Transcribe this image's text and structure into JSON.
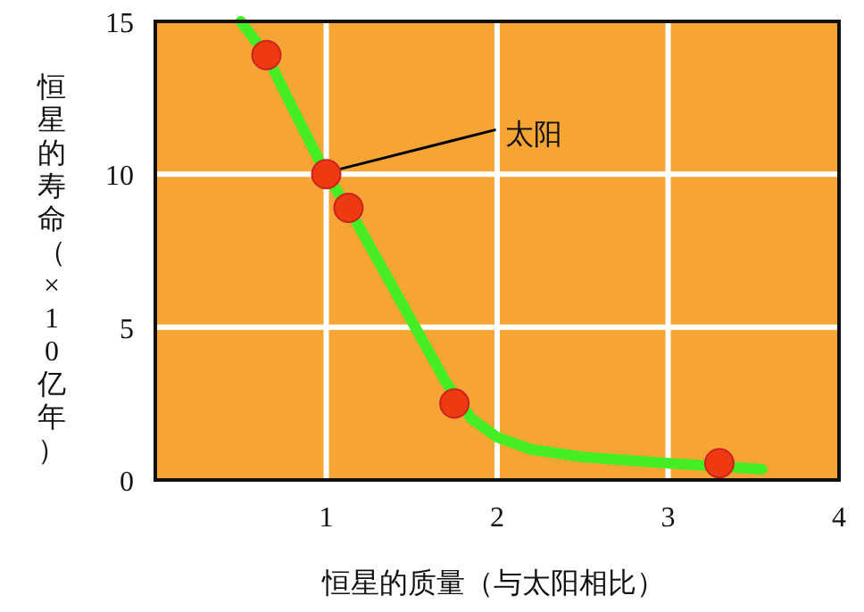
{
  "chart_data": {
    "type": "scatter",
    "xlabel": "恒星的质量（与太阳相比）",
    "ylabel": "恒星的寿命（×10亿年）",
    "xlim": [
      0,
      4
    ],
    "ylim": [
      0,
      15
    ],
    "xticks": [
      {
        "value": 0,
        "label": null
      },
      1,
      2,
      3,
      4
    ],
    "yticks": [
      0,
      5,
      10,
      15
    ],
    "grid": true,
    "series": [
      {
        "type": "line",
        "color": "#44ee22",
        "x": [
          0.5,
          0.65,
          0.8,
          1.0,
          1.15,
          1.3,
          1.5,
          1.7,
          1.85,
          2.0,
          2.2,
          2.5,
          3.0,
          3.55
        ],
        "values": [
          15,
          13.9,
          12.2,
          10,
          8.7,
          7.2,
          5.2,
          3.2,
          2.0,
          1.4,
          1.0,
          0.75,
          0.55,
          0.35
        ]
      },
      {
        "marker": "circle",
        "color": "#ee3a10",
        "x": [
          0.65,
          1.0,
          1.13,
          1.75,
          3.3
        ],
        "values": [
          13.9,
          10,
          8.9,
          2.5,
          0.55
        ]
      }
    ],
    "annotations": [
      {
        "text": "太阳",
        "x": 1,
        "y": 10
      }
    ]
  }
}
